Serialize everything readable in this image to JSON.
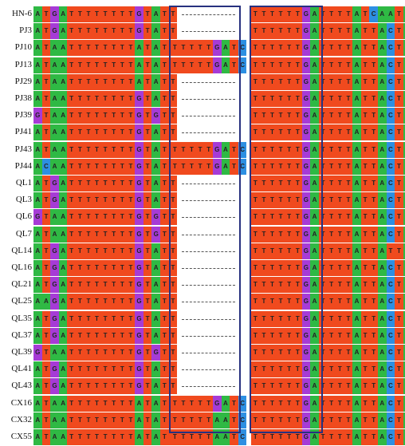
{
  "colors": {
    "A": "#2fb944",
    "T": "#f04a1e",
    "G": "#a63bd6",
    "C": "#2d8fe2",
    "box": "#27317f"
  },
  "rows": [
    {
      "label": "HN-6",
      "left": "ATGATTTTTTTTGTATT",
      "middle": "",
      "right": "TTTTTTGATTTTATCAATA"
    },
    {
      "label": "PJ3",
      "left": "ATGATTTTTTTTGTATT",
      "middle": "",
      "right": "TTTTTTGATTTTATTACTA"
    },
    {
      "label": "PJ10",
      "left": "ATAATTTTTTTTATATT",
      "middle": "TTTTTGATC",
      "right": "TTTTTTGATTTTATTACTA"
    },
    {
      "label": "PJ13",
      "left": "ATAATTTTTTTTATATT",
      "middle": "TTTTTGATC",
      "right": "TTTTTTGATTTTATTACTA"
    },
    {
      "label": "PJ29",
      "left": "ATAATTTTTTTTATATT",
      "middle": "",
      "right": "TTTTTTGATTTTATTACTA"
    },
    {
      "label": "PJ38",
      "left": "ATAATTTTTTTTGTATT",
      "middle": "",
      "right": "TTTTTTGATTTTATTACTA"
    },
    {
      "label": "PJ39",
      "left": "GTAATTTTTTTTGTGTT",
      "middle": "",
      "right": "TTTTTTGATTTTATTACTA"
    },
    {
      "label": "PJ41",
      "left": "ATAATTTTTTTTGTATT",
      "middle": "",
      "right": "TTTTTTGATTTTATTACTA"
    },
    {
      "label": "PJ43",
      "left": "ATAATTTTTTTTGTATT",
      "middle": "TTTTTGATC",
      "right": "TTTTTTGATTTTATTACTA"
    },
    {
      "label": "PJ44",
      "left": "ACAATTTTTTTTGTATT",
      "middle": "TTTTTGATC",
      "right": "TTTTTTGATTTTATTACTA"
    },
    {
      "label": "QL1",
      "left": "ATGATTTTTTTTGTATT",
      "middle": "",
      "right": "TTTTTTGATTTTATTACTA"
    },
    {
      "label": "QL3",
      "left": "ATGATTTTTTTTGTATT",
      "middle": "",
      "right": "TTTTTTGATTTTATTACTA"
    },
    {
      "label": "QL6",
      "left": "GTAATTTTTTTTGTGTT",
      "middle": "",
      "right": "TTTTTTGATTTTATTACTA"
    },
    {
      "label": "QL7",
      "left": "ATAATTTTTTTTGTGTT",
      "middle": "",
      "right": "TTTTTTGATTTTATTACTA"
    },
    {
      "label": "QL14",
      "left": "ATGATTTTTTTTGTATT",
      "middle": "",
      "right": "TTTTTTGATTTTATTATTA"
    },
    {
      "label": "QL16",
      "left": "ATGATTTTTTTTGTATT",
      "middle": "",
      "right": "TTTTTTGATTTTATTACTA"
    },
    {
      "label": "QL21",
      "left": "ATGATTTTTTTTGTATT",
      "middle": "",
      "right": "TTTTTTGATTTTATTACTA"
    },
    {
      "label": "QL25",
      "left": "AAGATTTTTTTTGTATT",
      "middle": "",
      "right": "TTTTTTGATTTTATTACTA"
    },
    {
      "label": "QL35",
      "left": "ATGATTTTTTTTGTATT",
      "middle": "",
      "right": "TTTTTTGATTTTATTACTA"
    },
    {
      "label": "QL37",
      "left": "ATGATTTTTTTTGTATT",
      "middle": "",
      "right": "TTTTTTGATTTTATTACTA"
    },
    {
      "label": "QL39",
      "left": "GTAATTTTTTTTGTGTT",
      "middle": "",
      "right": "TTTTTTGATTTTATTACTA"
    },
    {
      "label": "QL41",
      "left": "ATGATTTTTTTTGTATT",
      "middle": "",
      "right": "TTTTTTGATTTTATTACTA"
    },
    {
      "label": "QL43",
      "left": "ATGATTTTTTTTGTATT",
      "middle": "",
      "right": "TTTTTTGATTTTATTACTA"
    },
    {
      "label": "CX16",
      "left": "ATAATTTTTTTTATATT",
      "middle": "TTTTTGATC",
      "right": "TTTTTTGATTTTATTACTA"
    },
    {
      "label": "CX32",
      "left": "ATAATTTTTTTTATATT",
      "middle": "TTTTTAATC",
      "right": "TTTTTTGATTTTATTACTA"
    },
    {
      "label": "CX55",
      "left": "ATAATTTTTTTTATATT",
      "middle": "TTTTTAATC",
      "right": "TTTTTTGATTTTATTACTA"
    }
  ]
}
